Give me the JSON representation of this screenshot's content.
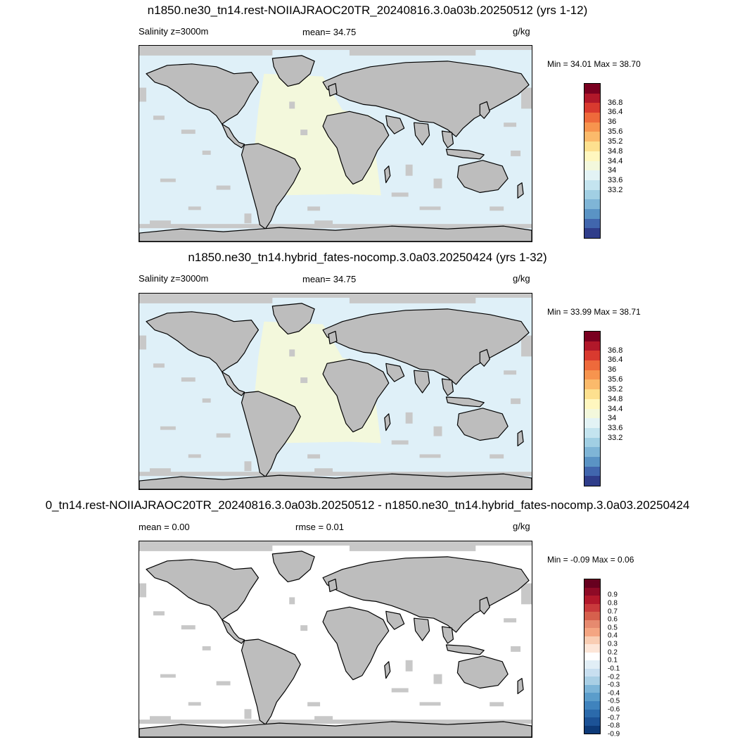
{
  "panels": [
    {
      "title": "n1850.ne30_tn14.rest-NOIIAJRAOC20TR_20240816.3.0a03b.20250512 (yrs 1-12)",
      "left_label": "Salinity z=3000m",
      "center_label": "mean=  34.75",
      "units": "g/kg",
      "minmax": "Min =  34.01 Max =  38.70",
      "ocean_color": "#dff0f8",
      "atlantic_color": "#f3f8dc",
      "colorbar": {
        "colors": [
          "#7a0020",
          "#b1182a",
          "#d93a2f",
          "#ee6a3b",
          "#f7944e",
          "#fbba6b",
          "#fde08f",
          "#fff7bf",
          "#f3f8dc",
          "#e3f3f5",
          "#c4e4ef",
          "#a1cfe3",
          "#7fb5d6",
          "#5a93c4",
          "#4166ad",
          "#2f3d8a"
        ],
        "labels": [
          "36.8",
          "36.4",
          "36",
          "35.6",
          "35.2",
          "34.8",
          "34.4",
          "34",
          "33.6",
          "33.2"
        ]
      }
    },
    {
      "title": "n1850.ne30_tn14.hybrid_fates-nocomp.3.0a03.20250424 (yrs 1-32)",
      "left_label": "Salinity z=3000m",
      "center_label": "mean=  34.75",
      "units": "g/kg",
      "minmax": "Min =  33.99 Max =  38.71",
      "ocean_color": "#dff0f8",
      "atlantic_color": "#f3f8dc",
      "colorbar": {
        "colors": [
          "#7a0020",
          "#b1182a",
          "#d93a2f",
          "#ee6a3b",
          "#f7944e",
          "#fbba6b",
          "#fde08f",
          "#fff7bf",
          "#f3f8dc",
          "#e3f3f5",
          "#c4e4ef",
          "#a1cfe3",
          "#7fb5d6",
          "#5a93c4",
          "#4166ad",
          "#2f3d8a"
        ],
        "labels": [
          "36.8",
          "36.4",
          "36",
          "35.6",
          "35.2",
          "34.8",
          "34.4",
          "34",
          "33.6",
          "33.2"
        ]
      }
    },
    {
      "title": "0_tn14.rest-NOIIAJRAOC20TR_20240816.3.0a03b.20250512 - n1850.ne30_tn14.hybrid_fates-nocomp.3.0a03.20250424",
      "left_label": "mean =   0.00",
      "center_label": "rmse =   0.01",
      "units": "g/kg",
      "minmax": "Min =  -0.09 Max =   0.06",
      "ocean_color": "#ffffff",
      "atlantic_color": "#ffffff",
      "colorbar": {
        "colors": [
          "#67001f",
          "#8e0a26",
          "#b2182b",
          "#c93a3c",
          "#d6604d",
          "#e68a6f",
          "#f4a582",
          "#f9cdb3",
          "#fde6d8",
          "#ffffff",
          "#e1eef6",
          "#c8dff0",
          "#a9cfe5",
          "#7db5d8",
          "#5b9dcb",
          "#3f83bd",
          "#2b6aab",
          "#1c5296",
          "#0d3a78"
        ],
        "labels": [
          "0.9",
          "0.8",
          "0.7",
          "0.6",
          "0.5",
          "0.4",
          "0.3",
          "0.2",
          "0.1",
          "-0.1",
          "-0.2",
          "-0.3",
          "-0.4",
          "-0.5",
          "-0.6",
          "-0.7",
          "-0.8",
          "-0.9"
        ]
      }
    }
  ],
  "land_color": "#bdbdbd",
  "mask_color": "#c8c8c8"
}
